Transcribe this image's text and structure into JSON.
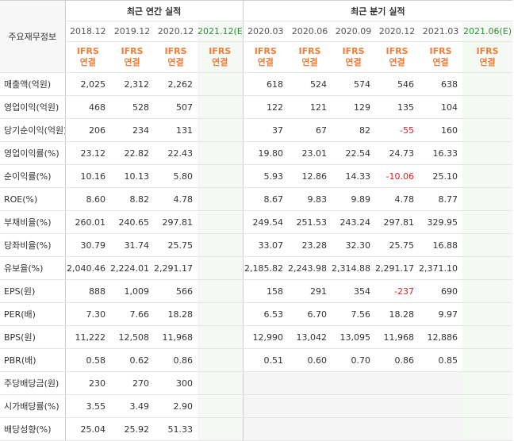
{
  "header": {
    "row_header": "주요재무정보",
    "annual_group": "최근 연간 실적",
    "quarter_group": "최근 분기 실적",
    "annual_periods": [
      "2018.12",
      "2019.12",
      "2020.12",
      "2021.12(E)"
    ],
    "quarter_periods": [
      "2020.03",
      "2020.06",
      "2020.09",
      "2020.12",
      "2021.03",
      "2021.06(E)"
    ],
    "ifrs_top": "IFRS",
    "ifrs_bottom": "연결"
  },
  "rows": [
    {
      "label": "매출액(억원)",
      "annual": [
        "2,025",
        "2,312",
        "2,262",
        ""
      ],
      "quarter": [
        "618",
        "524",
        "574",
        "546",
        "638",
        ""
      ]
    },
    {
      "label": "영업이익(억원)",
      "annual": [
        "468",
        "528",
        "507",
        ""
      ],
      "quarter": [
        "122",
        "121",
        "129",
        "135",
        "104",
        ""
      ]
    },
    {
      "label": "당기순이익(억원)",
      "annual": [
        "206",
        "234",
        "131",
        ""
      ],
      "quarter": [
        "37",
        "67",
        "82",
        "-55",
        "160",
        ""
      ]
    },
    {
      "label": "영업이익률(%)",
      "annual": [
        "23.12",
        "22.82",
        "22.43",
        ""
      ],
      "quarter": [
        "19.80",
        "23.01",
        "22.54",
        "24.73",
        "16.33",
        ""
      ]
    },
    {
      "label": "순이익률(%)",
      "annual": [
        "10.16",
        "10.13",
        "5.80",
        ""
      ],
      "quarter": [
        "5.93",
        "12.86",
        "14.33",
        "-10.06",
        "25.10",
        ""
      ]
    },
    {
      "label": "ROE(%)",
      "annual": [
        "8.60",
        "8.82",
        "4.78",
        ""
      ],
      "quarter": [
        "8.67",
        "9.83",
        "9.89",
        "4.78",
        "8.77",
        ""
      ]
    },
    {
      "label": "부채비율(%)",
      "annual": [
        "260.01",
        "240.65",
        "297.81",
        ""
      ],
      "quarter": [
        "249.54",
        "251.53",
        "243.24",
        "297.81",
        "329.95",
        ""
      ]
    },
    {
      "label": "당좌비율(%)",
      "annual": [
        "30.79",
        "31.74",
        "25.75",
        ""
      ],
      "quarter": [
        "33.07",
        "23.28",
        "32.30",
        "25.75",
        "16.88",
        ""
      ]
    },
    {
      "label": "유보율(%)",
      "annual": [
        "2,040.46",
        "2,224.01",
        "2,291.17",
        ""
      ],
      "quarter": [
        "2,185.82",
        "2,243.98",
        "2,314.88",
        "2,291.17",
        "2,371.10",
        ""
      ]
    },
    {
      "label": "EPS(원)",
      "annual": [
        "888",
        "1,009",
        "566",
        ""
      ],
      "quarter": [
        "158",
        "291",
        "354",
        "-237",
        "690",
        ""
      ]
    },
    {
      "label": "PER(배)",
      "annual": [
        "7.30",
        "7.66",
        "18.28",
        ""
      ],
      "quarter": [
        "6.53",
        "6.70",
        "7.56",
        "18.28",
        "9.97",
        ""
      ]
    },
    {
      "label": "BPS(원)",
      "annual": [
        "11,222",
        "12,508",
        "11,968",
        ""
      ],
      "quarter": [
        "12,990",
        "13,042",
        "13,095",
        "11,968",
        "12,886",
        ""
      ]
    },
    {
      "label": "PBR(배)",
      "annual": [
        "0.58",
        "0.62",
        "0.86",
        ""
      ],
      "quarter": [
        "0.51",
        "0.60",
        "0.70",
        "0.86",
        "0.85",
        ""
      ]
    },
    {
      "label": "주당배당금(원)",
      "annual": [
        "230",
        "270",
        "300",
        ""
      ],
      "quarter": [
        "",
        "",
        "",
        "",
        "",
        ""
      ]
    },
    {
      "label": "시가배당률(%)",
      "annual": [
        "3.55",
        "3.49",
        "2.90",
        ""
      ],
      "quarter": [
        "",
        "",
        "",
        "",
        "",
        ""
      ]
    },
    {
      "label": "배당성향(%)",
      "annual": [
        "25.04",
        "25.92",
        "51.33",
        ""
      ],
      "quarter": [
        "",
        "",
        "",
        "",
        "",
        ""
      ]
    }
  ]
}
